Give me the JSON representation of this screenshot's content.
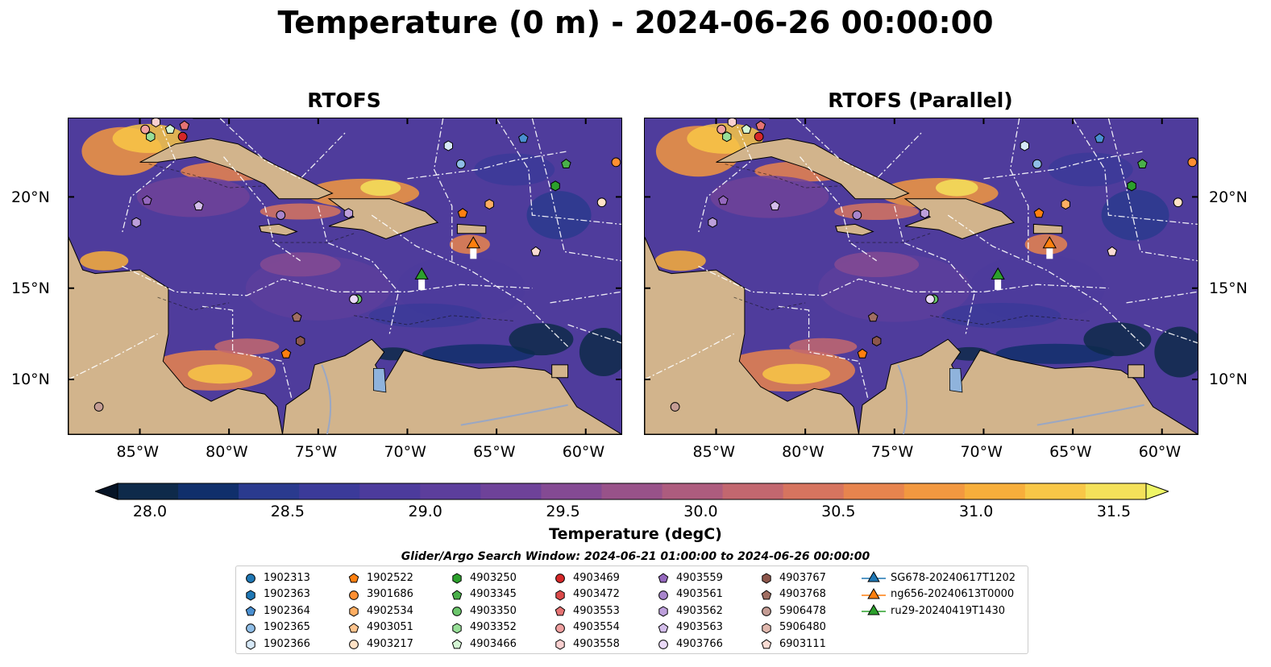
{
  "title": "Temperature (0 m) - 2024-06-26 00:00:00",
  "panels": [
    {
      "title": "RTOFS"
    },
    {
      "title": "RTOFS (Parallel)"
    }
  ],
  "lon_ticks": [
    "85°W",
    "80°W",
    "75°W",
    "70°W",
    "65°W",
    "60°W"
  ],
  "lat_ticks": [
    "20°N",
    "15°N",
    "10°N"
  ],
  "map_extent": {
    "lon": [
      -89,
      -58
    ],
    "lat": [
      7,
      24.3
    ]
  },
  "colorbar": {
    "label": "Temperature (degC)",
    "range": [
      28.0,
      31.5
    ],
    "ticks": [
      "28.0",
      "28.5",
      "29.0",
      "29.5",
      "30.0",
      "30.5",
      "31.0",
      "31.5"
    ],
    "colors": [
      "#0e2a4a",
      "#102f6b",
      "#2a3a8e",
      "#3b3a99",
      "#4c3b9c",
      "#5c3e9c",
      "#6e4299",
      "#844a93",
      "#985289",
      "#ad5c7e",
      "#c2676f",
      "#d6745f",
      "#e7844e",
      "#f29840",
      "#f7ae3b",
      "#f8c747",
      "#f4e15a"
    ],
    "extend": "both",
    "over_color": "#eef566",
    "under_color": "#061426"
  },
  "search_window": "Glider/Argo Search Window: 2024-06-21 01:00:00 to 2024-06-26 00:00:00",
  "legend": [
    {
      "label": "1902313",
      "marker": "circle",
      "color": "#1f77b4"
    },
    {
      "label": "1902363",
      "marker": "hexagon",
      "color": "#1f77b4"
    },
    {
      "label": "1902364",
      "marker": "pentagon",
      "color": "#4a8fd0"
    },
    {
      "label": "1902365",
      "marker": "circle",
      "color": "#8fbde6"
    },
    {
      "label": "1902366",
      "marker": "hexagon",
      "color": "#d6e8f7"
    },
    {
      "label": "1902522",
      "marker": "pentagon",
      "color": "#ff7f0e"
    },
    {
      "label": "3901686",
      "marker": "circle",
      "color": "#ff8f32"
    },
    {
      "label": "4902534",
      "marker": "hexagon",
      "color": "#ffae62"
    },
    {
      "label": "4903051",
      "marker": "pentagon",
      "color": "#ffc48e"
    },
    {
      "label": "4903217",
      "marker": "circle",
      "color": "#ffe2c6"
    },
    {
      "label": "4903250",
      "marker": "hexagon",
      "color": "#2ca02c"
    },
    {
      "label": "4903345",
      "marker": "pentagon",
      "color": "#4ab04a"
    },
    {
      "label": "4903350",
      "marker": "circle",
      "color": "#6cc66c"
    },
    {
      "label": "4903352",
      "marker": "hexagon",
      "color": "#98df98"
    },
    {
      "label": "4903466",
      "marker": "pentagon",
      "color": "#d4f5d4"
    },
    {
      "label": "4903469",
      "marker": "circle",
      "color": "#d62728"
    },
    {
      "label": "4903472",
      "marker": "hexagon",
      "color": "#dc4a4a"
    },
    {
      "label": "4903553",
      "marker": "pentagon",
      "color": "#e57373"
    },
    {
      "label": "4903554",
      "marker": "circle",
      "color": "#f0a0a0"
    },
    {
      "label": "4903558",
      "marker": "hexagon",
      "color": "#f9d0d0"
    },
    {
      "label": "4903559",
      "marker": "pentagon",
      "color": "#9467bd"
    },
    {
      "label": "4903561",
      "marker": "circle",
      "color": "#a885cc"
    },
    {
      "label": "4903562",
      "marker": "hexagon",
      "color": "#bd9fdb"
    },
    {
      "label": "4903563",
      "marker": "pentagon",
      "color": "#d3bdea"
    },
    {
      "label": "4903766",
      "marker": "circle",
      "color": "#ead9f8"
    },
    {
      "label": "4903767",
      "marker": "hexagon",
      "color": "#8c564b"
    },
    {
      "label": "4903768",
      "marker": "pentagon",
      "color": "#a06e62"
    },
    {
      "label": "5906478",
      "marker": "circle",
      "color": "#c49c94"
    },
    {
      "label": "5906480",
      "marker": "hexagon",
      "color": "#e0b8ae"
    },
    {
      "label": "6903111",
      "marker": "pentagon",
      "color": "#fadbd3"
    },
    {
      "label": "SG678-20240617T1202",
      "marker": "triangle-line",
      "color": "#1f77b4"
    },
    {
      "label": "ng656-20240613T0000",
      "marker": "triangle-line",
      "color": "#ff7f0e"
    },
    {
      "label": "ru29-20240419T1430",
      "marker": "triangle-line",
      "color": "#2ca02c"
    }
  ],
  "platforms": [
    {
      "id": "1902365",
      "lon": -67.0,
      "lat": 21.8
    },
    {
      "id": "1902366",
      "lon": -67.7,
      "lat": 22.8
    },
    {
      "id": "1902364",
      "lon": -63.5,
      "lat": 23.2
    },
    {
      "id": "4903345",
      "lon": -61.1,
      "lat": 21.8
    },
    {
      "id": "4903250",
      "lon": -61.7,
      "lat": 20.6
    },
    {
      "id": "4903217",
      "lon": -59.1,
      "lat": 19.7
    },
    {
      "id": "3901686",
      "lon": -58.3,
      "lat": 21.9
    },
    {
      "id": "4902534",
      "lon": -65.4,
      "lat": 19.6
    },
    {
      "id": "1902522",
      "lon": -66.9,
      "lat": 19.1
    },
    {
      "id": "6903111",
      "lon": -62.8,
      "lat": 17.0
    },
    {
      "id": "4903562",
      "lon": -73.3,
      "lat": 19.1
    },
    {
      "id": "4903561",
      "lon": -77.1,
      "lat": 19.0
    },
    {
      "id": "4903563",
      "lon": -81.7,
      "lat": 19.5
    },
    {
      "id": "4903559",
      "lon": -84.6,
      "lat": 19.8
    },
    {
      "id": "4903562",
      "lon": -85.2,
      "lat": 18.6
    },
    {
      "id": "4903350",
      "lon": -72.8,
      "lat": 14.4
    },
    {
      "id": "4903766",
      "lon": -73.0,
      "lat": 14.4
    },
    {
      "id": "4903768",
      "lon": -76.2,
      "lat": 13.4
    },
    {
      "id": "4903767",
      "lon": -76.0,
      "lat": 12.1
    },
    {
      "id": "1902522",
      "lon": -76.8,
      "lat": 11.4
    },
    {
      "id": "5906478",
      "lon": -87.3,
      "lat": 8.5
    },
    {
      "id": "4903352",
      "lon": -84.4,
      "lat": 23.3
    },
    {
      "id": "4903466",
      "lon": -83.3,
      "lat": 23.7
    },
    {
      "id": "4903553",
      "lon": -82.5,
      "lat": 23.9
    },
    {
      "id": "4903554",
      "lon": -84.7,
      "lat": 23.7
    },
    {
      "id": "4903558",
      "lon": -84.1,
      "lat": 24.1
    },
    {
      "id": "4903469",
      "lon": -82.6,
      "lat": 23.3
    }
  ],
  "gliders": [
    {
      "id": "ng656-20240613T0000",
      "lon": -66.3,
      "lat": 17.4
    },
    {
      "id": "ru29-20240419T1430",
      "lon": -69.2,
      "lat": 15.7
    }
  ]
}
